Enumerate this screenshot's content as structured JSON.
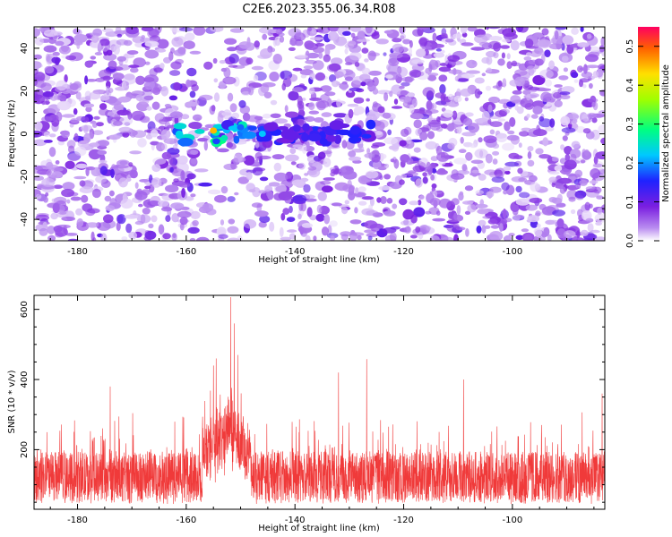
{
  "figure_title": "C2E6.2023.355.06.34.R08",
  "colors": {
    "snr_line": "#f03a3a",
    "spectrogram_base": "#6b1fd8",
    "spectrogram_light": "#c8a8f0"
  },
  "chart_data": [
    {
      "type": "heatmap",
      "title": "C2E6.2023.355.06.34.R08",
      "xlabel": "Height of straight line (km)",
      "ylabel": "Frequency (Hz)",
      "xlim": [
        -188,
        -83
      ],
      "ylim": [
        -50,
        50
      ],
      "x_ticks": [
        -180,
        -160,
        -140,
        -120,
        -100
      ],
      "y_ticks": [
        -40,
        -20,
        0,
        20,
        40
      ],
      "colorbar": {
        "label": "Normalized spectral amplitude",
        "range": [
          0,
          0.55
        ],
        "ticks": [
          0.0,
          0.1,
          0.2,
          0.3,
          0.4,
          0.5
        ],
        "colormap": "rainbow"
      },
      "background_level": 0.05,
      "peak_band": {
        "frequency": 0,
        "x_range": [
          -162,
          -126
        ],
        "max_value": 0.45,
        "max_at_x": -155
      },
      "grid": false
    },
    {
      "type": "line",
      "xlabel": "Height of straight line (km)",
      "ylabel": "SNR (10 * v/v)",
      "xlim": [
        -188,
        -83
      ],
      "ylim": [
        30,
        640
      ],
      "x_ticks": [
        -180,
        -160,
        -140,
        -120,
        -100
      ],
      "y_ticks": [
        200,
        400,
        600
      ],
      "baseline_mean": 120,
      "noise_band": [
        50,
        250
      ],
      "peaks": [
        {
          "x": -151.8,
          "y": 635
        },
        {
          "x": -151.2,
          "y": 560
        },
        {
          "x": -154.5,
          "y": 460
        },
        {
          "x": -155.0,
          "y": 440
        },
        {
          "x": -150.5,
          "y": 470
        },
        {
          "x": -174.0,
          "y": 380
        },
        {
          "x": -126.8,
          "y": 458
        },
        {
          "x": -132.0,
          "y": 420
        },
        {
          "x": -109.0,
          "y": 400
        },
        {
          "x": -83.5,
          "y": 360
        }
      ],
      "grid": false
    }
  ]
}
